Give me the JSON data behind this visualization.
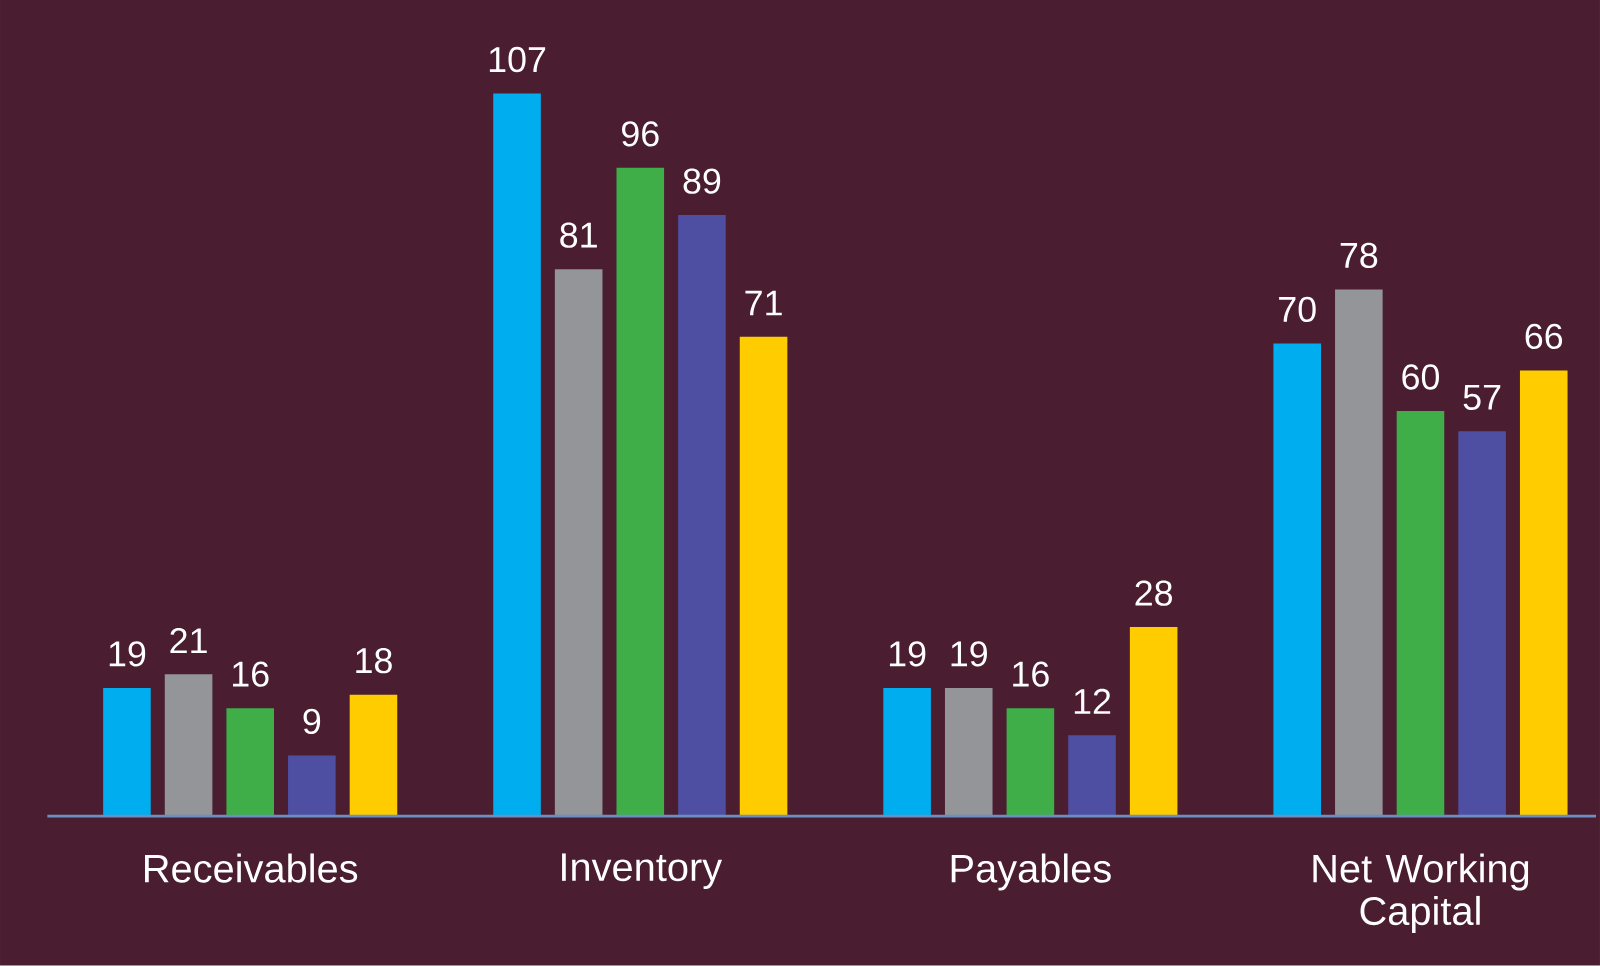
{
  "chart_data": {
    "type": "bar",
    "categories": [
      "Receivables",
      "Inventory",
      "Payables",
      "Net Working Capital"
    ],
    "series": [
      {
        "color": "#00aeef",
        "values": [
          19,
          107,
          19,
          70
        ]
      },
      {
        "color": "#939598",
        "values": [
          21,
          81,
          19,
          78
        ]
      },
      {
        "color": "#3fae49",
        "values": [
          16,
          96,
          16,
          60
        ]
      },
      {
        "color": "#4e4fa3",
        "values": [
          9,
          89,
          12,
          57
        ]
      },
      {
        "color": "#ffcc00",
        "values": [
          18,
          71,
          28,
          66
        ]
      }
    ],
    "data_labels": true
  }
}
